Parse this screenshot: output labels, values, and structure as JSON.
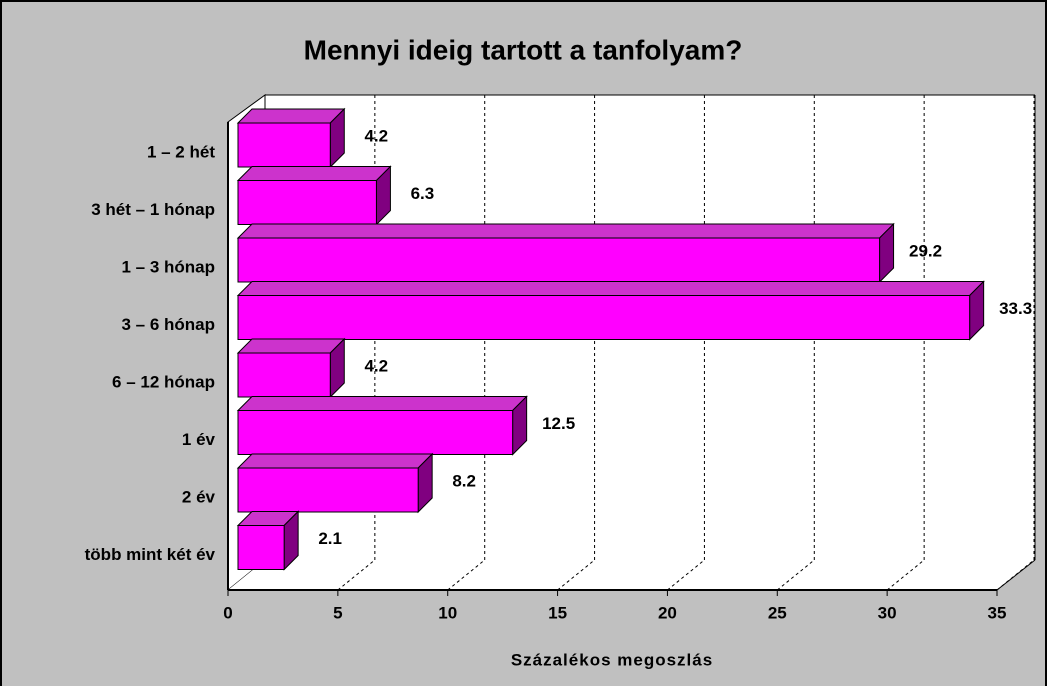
{
  "chart_data": {
    "type": "bar3d_horizontal",
    "title": "Mennyi ideig tartott a tanfolyam?",
    "x_label": "Százalékos megoszlás",
    "categories": [
      "1 – 2 hét",
      "3 hét – 1 hónap",
      "1 – 3 hónap",
      "3 – 6 hónap",
      "6 – 12 hónap",
      "1 év",
      "2 év",
      "több mint két év"
    ],
    "values": [
      4.2,
      6.3,
      29.2,
      33.3,
      4.2,
      12.5,
      8.2,
      2.1
    ],
    "color": "#ff00ff",
    "xlim": [
      0,
      35
    ],
    "xticks": [
      0,
      5,
      10,
      15,
      20,
      25,
      30,
      35
    ],
    "grid": true
  }
}
